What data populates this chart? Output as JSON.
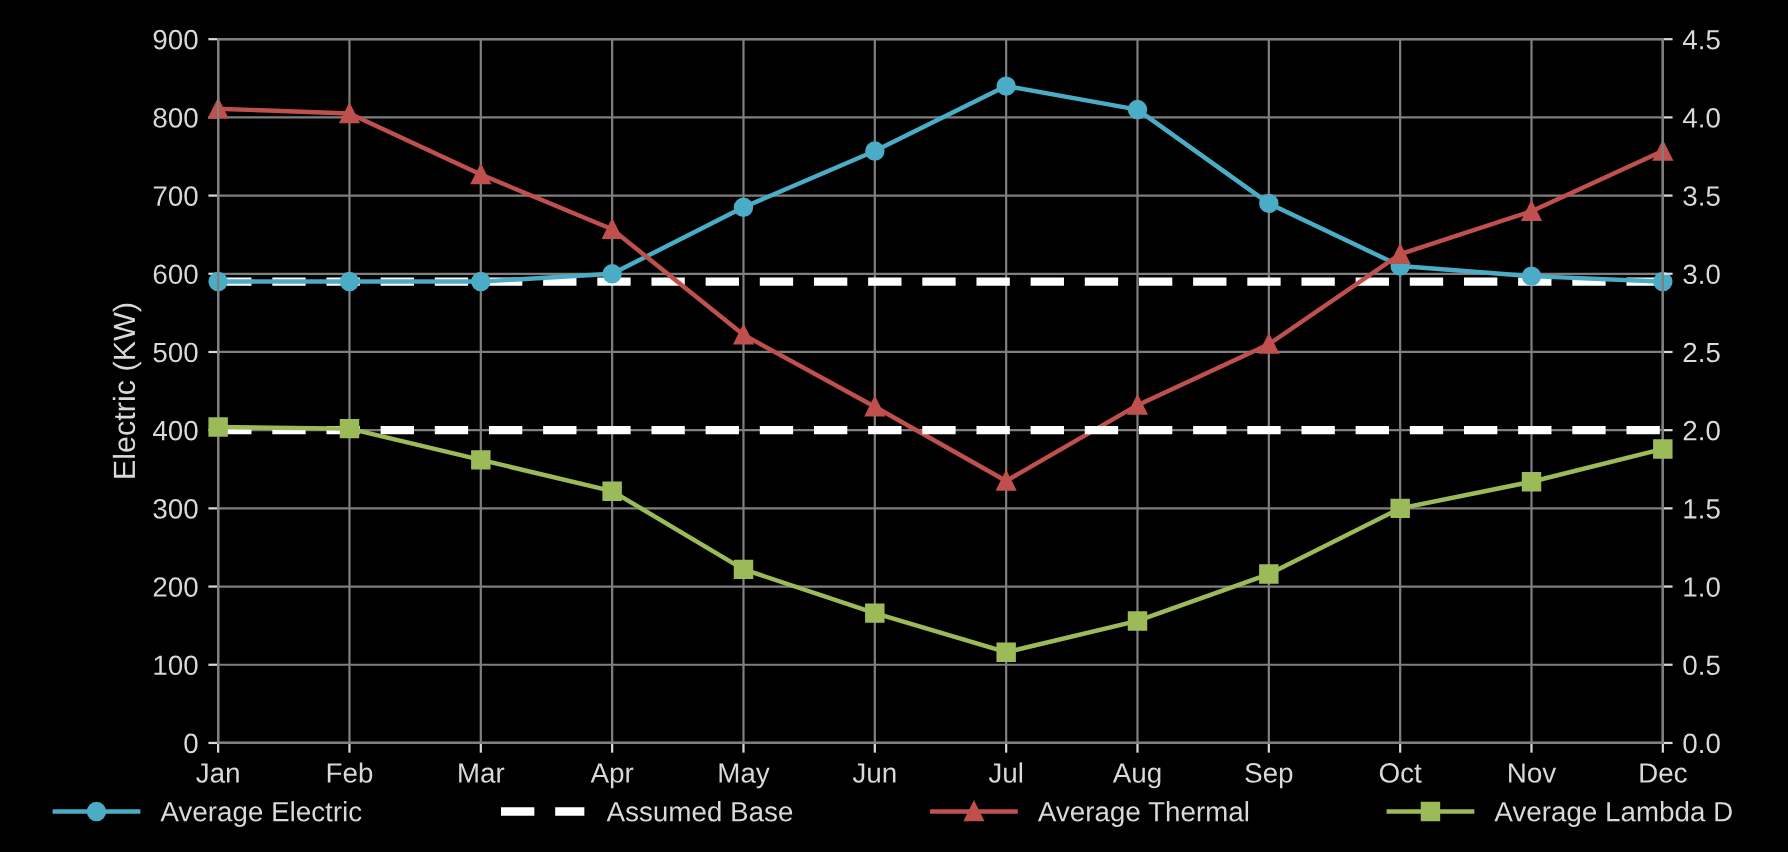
{
  "chart_data": {
    "type": "line",
    "ylabel": "Electric (KW)",
    "categories": [
      "Jan",
      "Feb",
      "Mar",
      "Apr",
      "May",
      "Jun",
      "Jul",
      "Aug",
      "Sep",
      "Oct",
      "Nov",
      "Dec"
    ],
    "series": [
      {
        "name": "Average Electric",
        "color": "#4bacc6",
        "marker": "circle",
        "values": [
          590,
          590,
          590,
          600,
          685,
          757,
          840,
          810,
          690,
          610,
          597,
          590
        ]
      },
      {
        "name": "Assumed Base",
        "color": "#ffffff",
        "marker": "none",
        "line_style": "dashed",
        "values": [
          590,
          590,
          590,
          590,
          590,
          590,
          590,
          590,
          590,
          590,
          590,
          590
        ]
      },
      {
        "name": "Average Thermal",
        "color": "#c0504d",
        "marker": "triangle",
        "values": [
          811,
          805,
          727,
          657,
          522,
          430,
          335,
          432,
          510,
          625,
          680,
          757
        ]
      },
      {
        "name": "Average Lambda D",
        "color": "#9bbb59",
        "marker": "square",
        "axis": "y2",
        "values": [
          2.02,
          2.01,
          1.81,
          1.61,
          1.11,
          0.83,
          0.58,
          0.78,
          1.08,
          1.5,
          1.67,
          1.88
        ]
      }
    ],
    "ref_lines": [
      {
        "axis": "y2",
        "value": 2.0,
        "color": "#ffffff",
        "line_style": "dashed"
      }
    ],
    "ylim": [
      0,
      900
    ],
    "yticks": [
      0,
      100,
      200,
      300,
      400,
      500,
      600,
      700,
      800,
      900
    ],
    "y2lim": [
      0,
      4.5
    ],
    "y2ticks": [
      {
        "value": 0,
        "label": "0.0"
      },
      0.5,
      {
        "value": 1,
        "label": "1.0"
      },
      1.5,
      {
        "value": 2,
        "label": "2.0"
      },
      2.5,
      {
        "value": 3,
        "label": "3.0"
      },
      3.5,
      {
        "value": 4,
        "label": "4.0"
      },
      4.5
    ],
    "grid": true,
    "legend": "bottom"
  }
}
